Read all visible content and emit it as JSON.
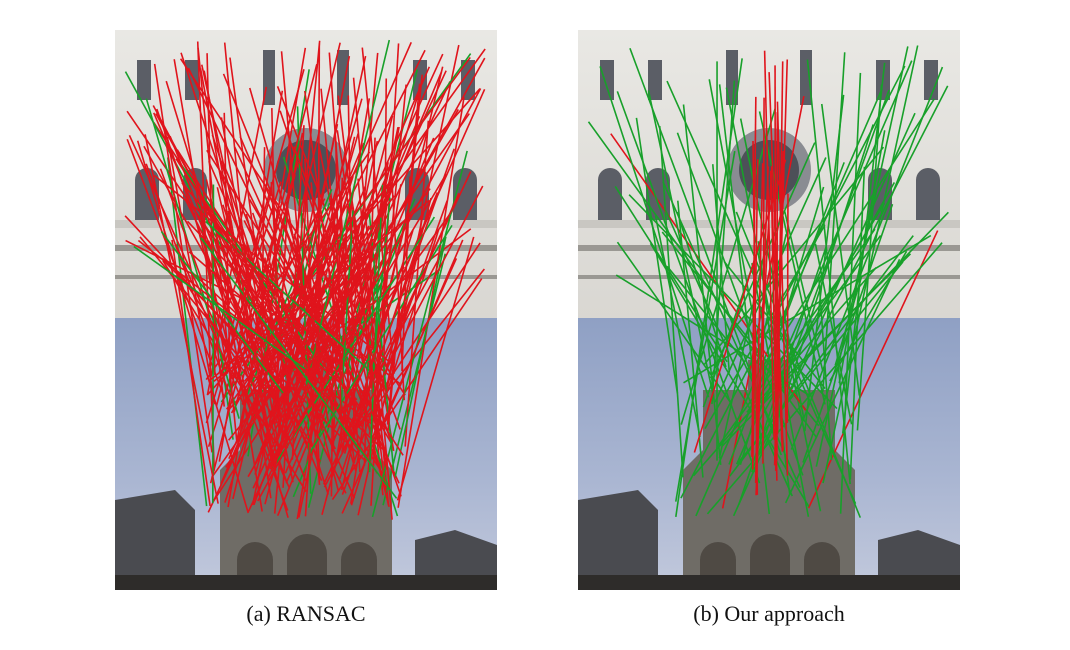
{
  "figure": {
    "panels": [
      {
        "caption": "(a) RANSAC"
      },
      {
        "caption": "(b) Our approach"
      }
    ]
  }
}
